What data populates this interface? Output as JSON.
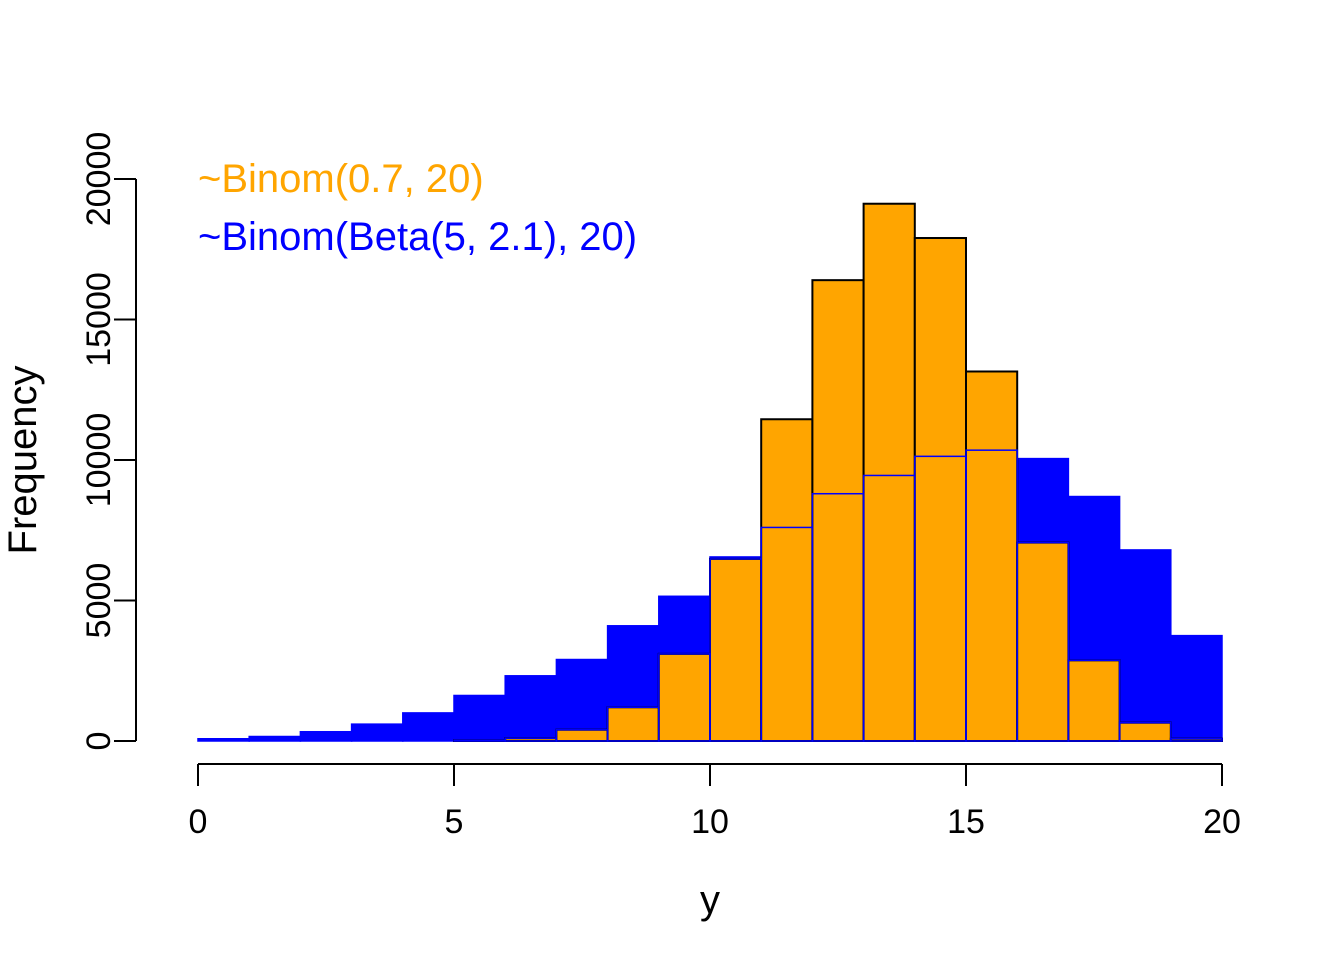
{
  "chart_data": {
    "type": "bar",
    "subtype": "overlaid-histogram",
    "xlabel": "y",
    "ylabel": "Frequency",
    "xlim": [
      0,
      20
    ],
    "ylim": [
      0,
      20000
    ],
    "bin_edges": [
      0,
      1,
      2,
      3,
      4,
      5,
      6,
      7,
      8,
      9,
      10,
      11,
      12,
      13,
      14,
      15,
      16,
      17,
      18,
      19,
      20
    ],
    "x_ticks": [
      0,
      5,
      10,
      15,
      20
    ],
    "y_ticks": [
      0,
      5000,
      10000,
      15000,
      20000
    ],
    "x_tick_labels": [
      "0",
      "5",
      "10",
      "15",
      "20"
    ],
    "y_tick_labels": [
      "0",
      "5000",
      "10000",
      "15000",
      "20000"
    ],
    "grid": false,
    "legend_position": "top-left",
    "series": [
      {
        "name": "~Binom(Beta(5, 2.1), 20)",
        "color": "#0000ff",
        "border_color": "#0000ff",
        "values": [
          80,
          160,
          330,
          600,
          1000,
          1620,
          2320,
          2900,
          4100,
          5150,
          6550,
          7600,
          8800,
          9450,
          10130,
          10350,
          10050,
          8700,
          6800,
          3750
        ]
      },
      {
        "name": "~Binom(0.7, 20)",
        "color": "#ffa500",
        "border_color": "#000000",
        "inner_border_color": "#0000ff",
        "values": [
          0,
          0,
          0,
          0,
          0,
          30,
          100,
          400,
          1200,
          3100,
          6480,
          11450,
          16400,
          19120,
          17900,
          13150,
          7060,
          2870,
          650,
          80
        ]
      }
    ],
    "legend": [
      {
        "label": "~Binom(0.7, 20)",
        "color": "#ffa500"
      },
      {
        "label": "~Binom(Beta(5, 2.1), 20)",
        "color": "#0000ff"
      }
    ]
  }
}
